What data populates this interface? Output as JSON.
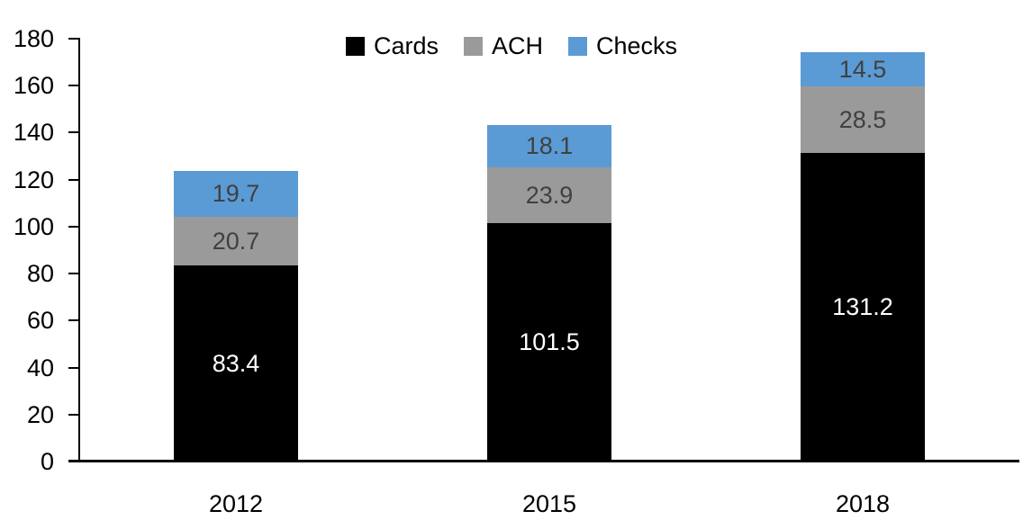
{
  "chart_data": {
    "type": "bar",
    "stacked": true,
    "title": "",
    "xlabel": "",
    "ylabel": "",
    "categories": [
      "2012",
      "2015",
      "2018"
    ],
    "series": [
      {
        "name": "Cards",
        "color": "#000000",
        "label_color": "#FFFFFF",
        "values": [
          83.4,
          101.5,
          131.2
        ]
      },
      {
        "name": "ACH",
        "color": "#9A9A9A",
        "label_color": "#404040",
        "values": [
          20.7,
          23.9,
          28.5
        ]
      },
      {
        "name": "Checks",
        "color": "#5B9BD5",
        "label_color": "#404040",
        "values": [
          19.7,
          18.1,
          14.5
        ]
      }
    ],
    "ylim": [
      0,
      180
    ],
    "ytick_step": 20,
    "yticks": [
      0,
      20,
      40,
      60,
      80,
      100,
      120,
      140,
      160,
      180
    ],
    "grid": false,
    "legend_position": "top-center",
    "axis_color": "#000000",
    "background_color": "#FFFFFF"
  }
}
